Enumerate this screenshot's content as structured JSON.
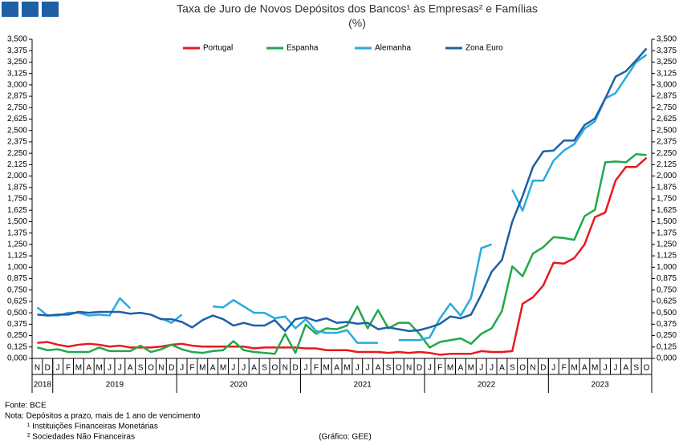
{
  "chart_data": {
    "type": "line",
    "title": "Taxa de Juro de Novos Depósitos dos Bancos¹ às Empresas² e Famílias",
    "subtitle": "(%)",
    "categories": [
      "N",
      "D",
      "J",
      "F",
      "M",
      "A",
      "M",
      "J",
      "J",
      "A",
      "S",
      "O",
      "N",
      "D",
      "J",
      "F",
      "M",
      "A",
      "M",
      "J",
      "J",
      "A",
      "S",
      "O",
      "N",
      "D",
      "J",
      "F",
      "M",
      "A",
      "M",
      "J",
      "J",
      "A",
      "S",
      "O",
      "N",
      "D",
      "J",
      "F",
      "M",
      "A",
      "M",
      "J",
      "J",
      "A",
      "S",
      "O",
      "N",
      "D",
      "J",
      "F",
      "M",
      "A",
      "M",
      "J",
      "J",
      "A",
      "S",
      "O"
    ],
    "year_labels": [
      "2018",
      "2019",
      "2020",
      "2021",
      "2022",
      "2023"
    ],
    "series": [
      {
        "name": "Portugal",
        "color": "#e8191e",
        "values": [
          0.17,
          0.18,
          0.15,
          0.13,
          0.15,
          0.16,
          0.15,
          0.13,
          0.14,
          0.12,
          0.12,
          0.12,
          0.13,
          0.15,
          0.16,
          0.14,
          0.13,
          0.13,
          0.13,
          0.13,
          0.13,
          0.11,
          0.12,
          0.12,
          0.12,
          0.12,
          0.11,
          0.11,
          0.09,
          0.09,
          0.09,
          0.07,
          0.07,
          0.07,
          0.06,
          0.07,
          0.06,
          0.07,
          0.06,
          0.04,
          0.05,
          0.05,
          0.05,
          0.08,
          0.07,
          0.07,
          0.08,
          0.6,
          0.67,
          0.8,
          1.05,
          1.04,
          1.1,
          1.25,
          1.55,
          1.6,
          1.95,
          2.1,
          2.1,
          2.2
        ]
      },
      {
        "name": "Espanha",
        "color": "#22a84a",
        "values": [
          0.12,
          0.09,
          0.1,
          0.07,
          0.07,
          0.07,
          0.12,
          0.08,
          0.08,
          0.08,
          0.14,
          0.07,
          0.1,
          0.15,
          0.1,
          0.07,
          0.06,
          0.08,
          0.09,
          0.19,
          0.09,
          0.07,
          0.06,
          0.05,
          0.27,
          0.06,
          0.37,
          0.27,
          0.33,
          0.32,
          0.36,
          0.57,
          0.33,
          0.53,
          0.33,
          0.39,
          0.39,
          0.27,
          0.12,
          0.18,
          0.2,
          0.22,
          0.16,
          0.27,
          0.33,
          0.52,
          1.01,
          0.9,
          1.15,
          1.22,
          1.33,
          1.32,
          1.3,
          1.56,
          1.63,
          2.15,
          2.16,
          2.15,
          2.24,
          2.23
        ]
      },
      {
        "name": "Alemanha",
        "color": "#29aae1",
        "values": [
          0.56,
          0.47,
          0.47,
          0.5,
          0.5,
          0.47,
          0.48,
          0.47,
          0.66,
          0.55,
          null,
          null,
          0.44,
          0.39,
          0.48,
          null,
          null,
          0.57,
          0.56,
          0.64,
          0.57,
          0.5,
          0.5,
          0.44,
          0.46,
          0.33,
          0.43,
          0.3,
          0.28,
          0.28,
          0.31,
          0.17,
          0.17,
          0.17,
          null,
          0.2,
          0.2,
          0.2,
          0.23,
          0.44,
          0.6,
          0.47,
          0.66,
          1.21,
          1.25,
          null,
          1.85,
          1.62,
          1.95,
          1.95,
          2.17,
          2.28,
          2.35,
          2.52,
          2.6,
          2.85,
          2.91,
          3.08,
          3.25,
          3.33
        ]
      },
      {
        "name": "Zona Euro",
        "color": "#1f5fa6",
        "values": [
          0.48,
          0.47,
          0.48,
          0.48,
          0.51,
          0.5,
          0.51,
          0.51,
          0.51,
          0.49,
          0.5,
          0.48,
          0.43,
          0.43,
          0.4,
          0.34,
          0.42,
          0.47,
          0.43,
          0.36,
          0.39,
          0.36,
          0.36,
          0.42,
          0.3,
          0.43,
          0.45,
          0.41,
          0.44,
          0.39,
          0.4,
          0.38,
          0.39,
          0.32,
          0.34,
          0.32,
          0.3,
          0.31,
          0.34,
          0.38,
          0.46,
          0.44,
          0.48,
          0.7,
          0.95,
          1.08,
          1.5,
          1.78,
          2.1,
          2.27,
          2.28,
          2.39,
          2.39,
          2.56,
          2.63,
          2.85,
          3.09,
          3.15,
          3.27,
          3.4
        ]
      }
    ],
    "ylim": [
      0,
      3.5
    ],
    "yticks": [
      {
        "value": 0,
        "label": "0,000"
      },
      {
        "value": 0.125,
        "label": "0,125"
      },
      {
        "value": 0.25,
        "label": "0,250"
      },
      {
        "value": 0.375,
        "label": "0,375"
      },
      {
        "value": 0.5,
        "label": "0,500"
      },
      {
        "value": 0.625,
        "label": "0,625"
      },
      {
        "value": 0.75,
        "label": "0,750"
      },
      {
        "value": 0.875,
        "label": "0,875"
      },
      {
        "value": 1,
        "label": "1,000"
      },
      {
        "value": 1.125,
        "label": "1,125"
      },
      {
        "value": 1.25,
        "label": "1,250"
      },
      {
        "value": 1.375,
        "label": "1,375"
      },
      {
        "value": 1.5,
        "label": "1,500"
      },
      {
        "value": 1.625,
        "label": "1,625"
      },
      {
        "value": 1.75,
        "label": "1,750"
      },
      {
        "value": 1.875,
        "label": "1,875"
      },
      {
        "value": 2,
        "label": "2,000"
      },
      {
        "value": 2.125,
        "label": "2,125"
      },
      {
        "value": 2.25,
        "label": "2,250"
      },
      {
        "value": 2.375,
        "label": "2,375"
      },
      {
        "value": 2.5,
        "label": "2,500"
      },
      {
        "value": 2.625,
        "label": "2,625"
      },
      {
        "value": 2.75,
        "label": "2,750"
      },
      {
        "value": 2.875,
        "label": "2,875"
      },
      {
        "value": 3,
        "label": "3,000"
      },
      {
        "value": 3.125,
        "label": "3,125"
      },
      {
        "value": 3.25,
        "label": "3,250"
      },
      {
        "value": 3.375,
        "label": "3,375"
      },
      {
        "value": 3.5,
        "label": "3,500"
      }
    ],
    "y2lim": [
      0,
      3.5
    ],
    "y2ticks": [
      {
        "value": 0,
        "label": "0,000"
      },
      {
        "value": 0.125,
        "label": "0,125"
      },
      {
        "value": 0.25,
        "label": "0,250"
      },
      {
        "value": 0.375,
        "label": "0,375"
      },
      {
        "value": 0.5,
        "label": "0,500"
      },
      {
        "value": 0.625,
        "label": "0,625"
      },
      {
        "value": 0.75,
        "label": "0,750"
      },
      {
        "value": 0.875,
        "label": "0,875"
      },
      {
        "value": 1,
        "label": "1,000"
      },
      {
        "value": 1.125,
        "label": "1,125"
      },
      {
        "value": 1.25,
        "label": "1,250"
      },
      {
        "value": 1.375,
        "label": "1,375"
      },
      {
        "value": 1.5,
        "label": "1,500"
      },
      {
        "value": 1.625,
        "label": "1,625"
      },
      {
        "value": 1.75,
        "label": "1,750"
      },
      {
        "value": 1.875,
        "label": "1,875"
      },
      {
        "value": 2,
        "label": "2,000"
      },
      {
        "value": 2.125,
        "label": "2,125"
      },
      {
        "value": 2.25,
        "label": "2,250"
      },
      {
        "value": 2.375,
        "label": "2,375"
      },
      {
        "value": 2.5,
        "label": "2,500"
      },
      {
        "value": 2.625,
        "label": "2,625"
      },
      {
        "value": 2.75,
        "label": "2,750"
      },
      {
        "value": 2.875,
        "label": "2,875"
      },
      {
        "value": 3,
        "label": "3,000"
      },
      {
        "value": 3.125,
        "label": "3,125"
      },
      {
        "value": 3.25,
        "label": "3,250"
      },
      {
        "value": 3.375,
        "label": "3,375"
      },
      {
        "value": 3.5,
        "label": "3,500"
      }
    ],
    "grid": false,
    "legend": "top",
    "notes": [
      "Fonte: BCE",
      "Nota: Depósitos a prazo, mais de 1 ano de vencimento",
      "¹ Instituições Financeiras Monetárias",
      "² Sociedades Não Financeiras"
    ],
    "credit": "(Gráfico: GEE)"
  }
}
